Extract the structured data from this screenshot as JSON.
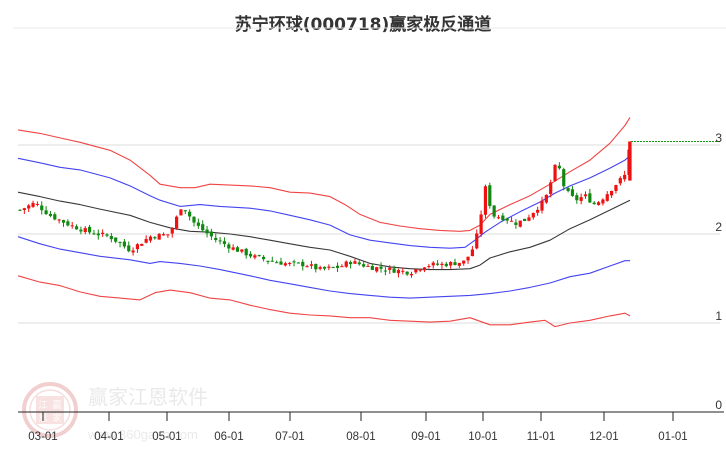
{
  "title": "苏宁环球(000718)赢家极反通道",
  "watermark": {
    "brand": "赢家江恩软件",
    "url": "www.360gann.com",
    "seal": [
      "江",
      "赢",
      "恩",
      "家"
    ]
  },
  "colors": {
    "outer_band": "#f03030",
    "inner_band": "#3030f0",
    "middle_line": "#222222",
    "candle_up": "#ee1111",
    "candle_down": "#118811",
    "last_price_line": "#119911",
    "grid": "#dddddd",
    "axis": "#222222"
  },
  "chart_data": {
    "type": "candlestick",
    "title": "苏宁环球(000718)赢家极反通道",
    "xlabel": "",
    "ylabel": "",
    "ylim": [
      0,
      3.3
    ],
    "yticks": [
      0,
      1,
      2,
      3
    ],
    "xticks": [
      "03-01",
      "04-01",
      "05-01",
      "06-01",
      "07-01",
      "08-01",
      "09-01",
      "10-01",
      "11-01",
      "12-01",
      "01-01"
    ],
    "grid": true,
    "legend": null,
    "last_price": 3.04,
    "series": [
      {
        "name": "upper-outer-band",
        "color": "#f03030",
        "points": [
          [
            18,
            3.17
          ],
          [
            40,
            3.13
          ],
          [
            60,
            3.08
          ],
          [
            80,
            3.03
          ],
          [
            110,
            2.94
          ],
          [
            130,
            2.83
          ],
          [
            150,
            2.66
          ],
          [
            160,
            2.56
          ],
          [
            180,
            2.52
          ],
          [
            195,
            2.52
          ],
          [
            210,
            2.56
          ],
          [
            230,
            2.55
          ],
          [
            250,
            2.54
          ],
          [
            270,
            2.52
          ],
          [
            290,
            2.47
          ],
          [
            310,
            2.46
          ],
          [
            330,
            2.42
          ],
          [
            345,
            2.33
          ],
          [
            360,
            2.22
          ],
          [
            380,
            2.13
          ],
          [
            400,
            2.09
          ],
          [
            420,
            2.06
          ],
          [
            440,
            2.04
          ],
          [
            460,
            2.03
          ],
          [
            470,
            2.04
          ],
          [
            480,
            2.1
          ],
          [
            490,
            2.22
          ],
          [
            510,
            2.33
          ],
          [
            530,
            2.43
          ],
          [
            550,
            2.56
          ],
          [
            570,
            2.7
          ],
          [
            590,
            2.83
          ],
          [
            610,
            3.02
          ],
          [
            625,
            3.22
          ],
          [
            630,
            3.31
          ]
        ]
      },
      {
        "name": "upper-inner-band",
        "color": "#3030f0",
        "points": [
          [
            18,
            2.85
          ],
          [
            40,
            2.8
          ],
          [
            60,
            2.75
          ],
          [
            80,
            2.72
          ],
          [
            110,
            2.63
          ],
          [
            130,
            2.54
          ],
          [
            150,
            2.43
          ],
          [
            160,
            2.38
          ],
          [
            180,
            2.31
          ],
          [
            200,
            2.33
          ],
          [
            220,
            2.31
          ],
          [
            250,
            2.29
          ],
          [
            270,
            2.26
          ],
          [
            290,
            2.21
          ],
          [
            310,
            2.16
          ],
          [
            330,
            2.1
          ],
          [
            350,
            1.99
          ],
          [
            370,
            1.93
          ],
          [
            390,
            1.9
          ],
          [
            410,
            1.87
          ],
          [
            430,
            1.85
          ],
          [
            450,
            1.84
          ],
          [
            465,
            1.85
          ],
          [
            475,
            1.93
          ],
          [
            485,
            2.02
          ],
          [
            500,
            2.13
          ],
          [
            520,
            2.25
          ],
          [
            540,
            2.36
          ],
          [
            555,
            2.46
          ],
          [
            570,
            2.54
          ],
          [
            590,
            2.63
          ],
          [
            610,
            2.74
          ],
          [
            625,
            2.83
          ],
          [
            630,
            2.88
          ]
        ]
      },
      {
        "name": "middle-line",
        "color": "#222222",
        "points": [
          [
            18,
            2.47
          ],
          [
            40,
            2.42
          ],
          [
            60,
            2.37
          ],
          [
            80,
            2.33
          ],
          [
            100,
            2.28
          ],
          [
            130,
            2.21
          ],
          [
            150,
            2.13
          ],
          [
            170,
            2.07
          ],
          [
            190,
            2.03
          ],
          [
            210,
            2.02
          ],
          [
            230,
            2.0
          ],
          [
            250,
            1.97
          ],
          [
            270,
            1.93
          ],
          [
            290,
            1.89
          ],
          [
            310,
            1.85
          ],
          [
            330,
            1.82
          ],
          [
            350,
            1.75
          ],
          [
            370,
            1.67
          ],
          [
            390,
            1.63
          ],
          [
            410,
            1.61
          ],
          [
            430,
            1.6
          ],
          [
            450,
            1.6
          ],
          [
            470,
            1.61
          ],
          [
            480,
            1.65
          ],
          [
            490,
            1.73
          ],
          [
            510,
            1.8
          ],
          [
            530,
            1.85
          ],
          [
            550,
            1.93
          ],
          [
            570,
            2.06
          ],
          [
            590,
            2.16
          ],
          [
            610,
            2.27
          ],
          [
            630,
            2.38
          ]
        ]
      },
      {
        "name": "lower-inner-band",
        "color": "#3030f0",
        "points": [
          [
            18,
            1.97
          ],
          [
            40,
            1.89
          ],
          [
            60,
            1.83
          ],
          [
            80,
            1.79
          ],
          [
            100,
            1.75
          ],
          [
            130,
            1.71
          ],
          [
            150,
            1.67
          ],
          [
            160,
            1.69
          ],
          [
            180,
            1.67
          ],
          [
            200,
            1.64
          ],
          [
            220,
            1.6
          ],
          [
            250,
            1.53
          ],
          [
            270,
            1.48
          ],
          [
            290,
            1.44
          ],
          [
            310,
            1.4
          ],
          [
            330,
            1.36
          ],
          [
            350,
            1.33
          ],
          [
            370,
            1.31
          ],
          [
            390,
            1.29
          ],
          [
            410,
            1.28
          ],
          [
            430,
            1.29
          ],
          [
            450,
            1.3
          ],
          [
            470,
            1.31
          ],
          [
            490,
            1.33
          ],
          [
            510,
            1.36
          ],
          [
            530,
            1.4
          ],
          [
            550,
            1.45
          ],
          [
            570,
            1.52
          ],
          [
            590,
            1.56
          ],
          [
            610,
            1.64
          ],
          [
            625,
            1.7
          ],
          [
            630,
            1.7
          ]
        ]
      },
      {
        "name": "lower-outer-band",
        "color": "#f03030",
        "points": [
          [
            18,
            1.53
          ],
          [
            40,
            1.46
          ],
          [
            60,
            1.42
          ],
          [
            80,
            1.35
          ],
          [
            100,
            1.3
          ],
          [
            120,
            1.28
          ],
          [
            140,
            1.26
          ],
          [
            155,
            1.34
          ],
          [
            170,
            1.37
          ],
          [
            190,
            1.34
          ],
          [
            210,
            1.28
          ],
          [
            230,
            1.26
          ],
          [
            250,
            1.2
          ],
          [
            270,
            1.15
          ],
          [
            290,
            1.11
          ],
          [
            310,
            1.09
          ],
          [
            330,
            1.08
          ],
          [
            350,
            1.06
          ],
          [
            370,
            1.06
          ],
          [
            390,
            1.03
          ],
          [
            410,
            1.02
          ],
          [
            430,
            1.01
          ],
          [
            450,
            1.02
          ],
          [
            470,
            1.06
          ],
          [
            490,
            0.98
          ],
          [
            510,
            0.98
          ],
          [
            530,
            1.01
          ],
          [
            545,
            1.03
          ],
          [
            555,
            0.96
          ],
          [
            570,
            1.0
          ],
          [
            590,
            1.03
          ],
          [
            610,
            1.08
          ],
          [
            625,
            1.11
          ],
          [
            630,
            1.08
          ]
        ]
      }
    ],
    "candles_close_path": [
      [
        20,
        2.27
      ],
      [
        35,
        2.35
      ],
      [
        50,
        2.21
      ],
      [
        70,
        2.1
      ],
      [
        90,
        2.02
      ],
      [
        110,
        1.97
      ],
      [
        130,
        1.82
      ],
      [
        150,
        1.97
      ],
      [
        170,
        2.0
      ],
      [
        182,
        2.33
      ],
      [
        195,
        2.11
      ],
      [
        215,
        1.94
      ],
      [
        235,
        1.83
      ],
      [
        255,
        1.74
      ],
      [
        275,
        1.69
      ],
      [
        290,
        1.66
      ],
      [
        305,
        1.66
      ],
      [
        320,
        1.6
      ],
      [
        340,
        1.63
      ],
      [
        350,
        1.69
      ],
      [
        370,
        1.63
      ],
      [
        390,
        1.6
      ],
      [
        410,
        1.57
      ],
      [
        425,
        1.65
      ],
      [
        445,
        1.66
      ],
      [
        465,
        1.69
      ],
      [
        475,
        1.88
      ],
      [
        480,
        2.16
      ],
      [
        486,
        2.55
      ],
      [
        492,
        2.21
      ],
      [
        505,
        2.18
      ],
      [
        515,
        2.12
      ],
      [
        525,
        2.16
      ],
      [
        535,
        2.27
      ],
      [
        545,
        2.38
      ],
      [
        553,
        2.66
      ],
      [
        557,
        2.83
      ],
      [
        565,
        2.49
      ],
      [
        575,
        2.38
      ],
      [
        585,
        2.43
      ],
      [
        595,
        2.33
      ],
      [
        605,
        2.43
      ],
      [
        615,
        2.55
      ],
      [
        625,
        2.66
      ],
      [
        630,
        3.04
      ]
    ]
  }
}
